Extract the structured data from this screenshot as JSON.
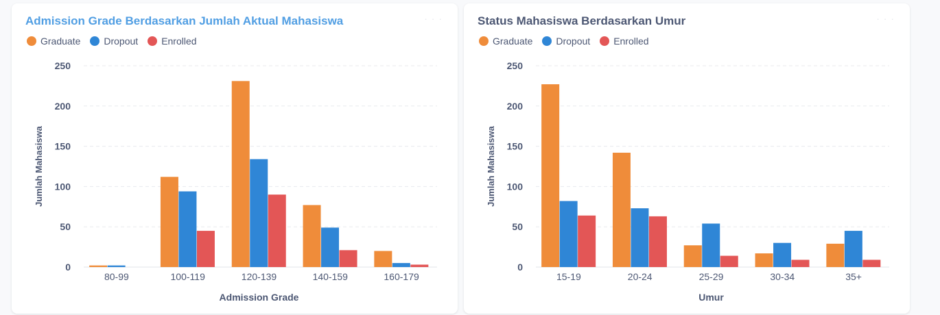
{
  "colors": {
    "Graduate": "#ef8c3a",
    "Dropout": "#2f86d6",
    "Enrolled": "#e35656"
  },
  "chart_data": [
    {
      "type": "bar",
      "title": "Admission Grade Berdasarkan Jumlah Aktual Mahasiswa",
      "xlabel": "Admission Grade",
      "ylabel": "Jumlah Mahasiswa",
      "ylim": [
        0,
        250
      ],
      "yticks": [
        "0",
        "50",
        "100",
        "150",
        "200",
        "250"
      ],
      "categories": [
        "80-99",
        "100-119",
        "120-139",
        "140-159",
        "160-179"
      ],
      "series": [
        {
          "name": "Graduate",
          "values": [
            2,
            112,
            231,
            77,
            20
          ]
        },
        {
          "name": "Dropout",
          "values": [
            2,
            94,
            134,
            49,
            5
          ]
        },
        {
          "name": "Enrolled",
          "values": [
            0,
            45,
            90,
            21,
            3
          ]
        }
      ],
      "grid": true,
      "legend": "top-left"
    },
    {
      "type": "bar",
      "title": "Status Mahasiswa Berdasarkan Umur",
      "xlabel": "Umur",
      "ylabel": "Jumlah Mahasiswa",
      "ylim": [
        0,
        250
      ],
      "yticks": [
        "0",
        "50",
        "100",
        "150",
        "200",
        "250"
      ],
      "categories": [
        "15-19",
        "20-24",
        "25-29",
        "30-34",
        "35+"
      ],
      "series": [
        {
          "name": "Graduate",
          "values": [
            227,
            142,
            27,
            17,
            29
          ]
        },
        {
          "name": "Dropout",
          "values": [
            82,
            73,
            54,
            30,
            45
          ]
        },
        {
          "name": "Enrolled",
          "values": [
            64,
            63,
            14,
            9,
            9
          ]
        }
      ],
      "grid": true,
      "legend": "top-left"
    }
  ]
}
